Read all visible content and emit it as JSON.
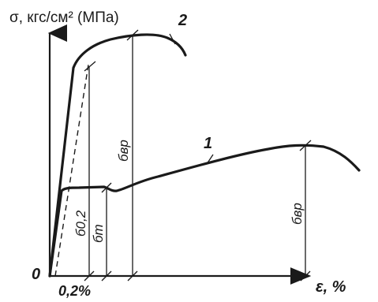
{
  "axes": {
    "y_label": "σ, кгс/см² (МПа)",
    "x_label": "ε, %",
    "origin_label": "0",
    "offset_label": "0,2%"
  },
  "curves": [
    {
      "label": "1"
    },
    {
      "label": "2"
    }
  ],
  "markers": {
    "proof_stress": "б0,2",
    "yield_point": "бт",
    "ultimate_1": "бвр",
    "ultimate_2": "бвр"
  }
}
